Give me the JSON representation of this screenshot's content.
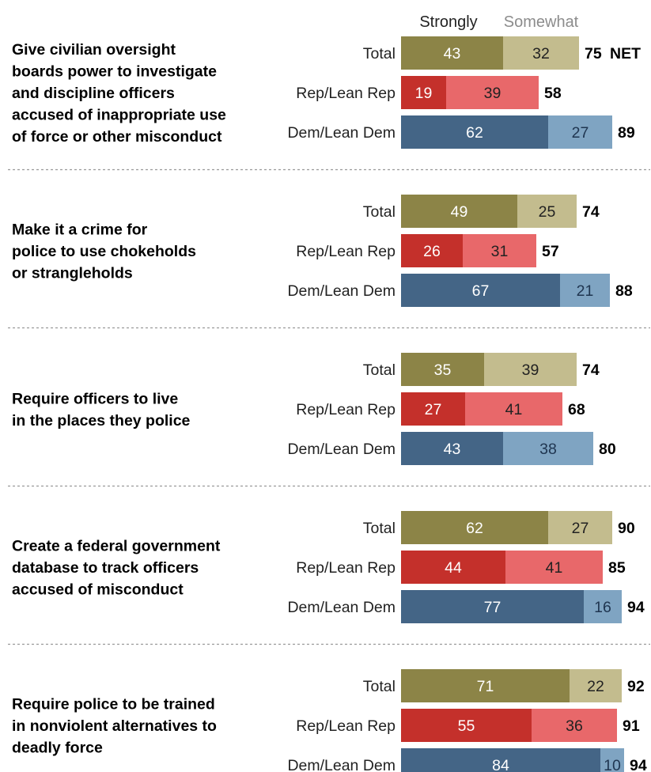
{
  "colors": {
    "total_strong": "#8c8447",
    "total_some": "#c3bc8e",
    "rep_strong": "#c4302b",
    "rep_some": "#e8686a",
    "dem_strong": "#446586",
    "dem_some": "#7fa4c2",
    "divider": "#999999"
  },
  "legend": {
    "strongly": "Strongly",
    "somewhat": "Somewhat",
    "net": "NET"
  },
  "chart_data": {
    "type": "bar",
    "stacked": true,
    "orientation": "horizontal",
    "groups": [
      "Total",
      "Rep/Lean Rep",
      "Dem/Lean Dem"
    ],
    "series_names": [
      "Strongly",
      "Somewhat"
    ],
    "items": [
      {
        "question": [
          "Give civilian oversight",
          "boards power to investigate",
          "and discipline officers",
          "accused of inappropriate use",
          "of force or other misconduct"
        ],
        "rows": [
          {
            "group": "Total",
            "strongly": 43,
            "somewhat": 32,
            "net": 75
          },
          {
            "group": "Rep/Lean Rep",
            "strongly": 19,
            "somewhat": 39,
            "net": 58
          },
          {
            "group": "Dem/Lean Dem",
            "strongly": 62,
            "somewhat": 27,
            "net": 89
          }
        ]
      },
      {
        "question": [
          "Make it a crime for",
          "police to use chokeholds",
          "or strangleholds"
        ],
        "rows": [
          {
            "group": "Total",
            "strongly": 49,
            "somewhat": 25,
            "net": 74
          },
          {
            "group": "Rep/Lean Rep",
            "strongly": 26,
            "somewhat": 31,
            "net": 57
          },
          {
            "group": "Dem/Lean Dem",
            "strongly": 67,
            "somewhat": 21,
            "net": 88
          }
        ]
      },
      {
        "question": [
          "Require officers to live",
          "in the places they police"
        ],
        "rows": [
          {
            "group": "Total",
            "strongly": 35,
            "somewhat": 39,
            "net": 74
          },
          {
            "group": "Rep/Lean Rep",
            "strongly": 27,
            "somewhat": 41,
            "net": 68
          },
          {
            "group": "Dem/Lean Dem",
            "strongly": 43,
            "somewhat": 38,
            "net": 80
          }
        ]
      },
      {
        "question": [
          "Create a federal government",
          "database to track officers",
          "accused of misconduct"
        ],
        "rows": [
          {
            "group": "Total",
            "strongly": 62,
            "somewhat": 27,
            "net": 90
          },
          {
            "group": "Rep/Lean Rep",
            "strongly": 44,
            "somewhat": 41,
            "net": 85
          },
          {
            "group": "Dem/Lean Dem",
            "strongly": 77,
            "somewhat": 16,
            "net": 94
          }
        ]
      },
      {
        "question": [
          "Require police to be trained",
          "in nonviolent alternatives to",
          "deadly force"
        ],
        "rows": [
          {
            "group": "Total",
            "strongly": 71,
            "somewhat": 22,
            "net": 92
          },
          {
            "group": "Rep/Lean Rep",
            "strongly": 55,
            "somewhat": 36,
            "net": 91
          },
          {
            "group": "Dem/Lean Dem",
            "strongly": 84,
            "somewhat": 10,
            "net": 94
          }
        ]
      }
    ]
  }
}
